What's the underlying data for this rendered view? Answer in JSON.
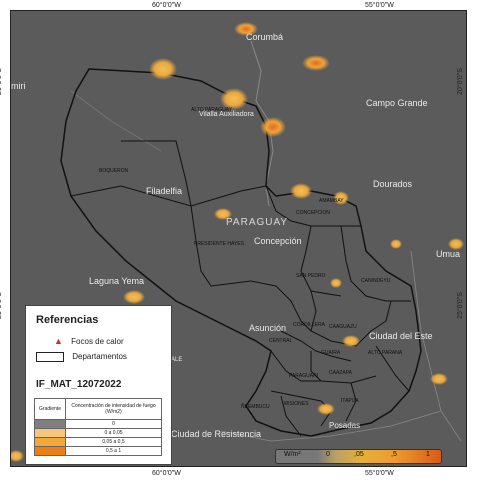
{
  "map": {
    "lon_ticks": [
      "60°0'0\"W",
      "55°0'0\"W"
    ],
    "lat_ticks": [
      "20°0'0\"S",
      "25°0'0\"S"
    ],
    "country_label": "PARAGUAY",
    "cities": {
      "corumba": "Corumbá",
      "miri": "miri",
      "campo_grande": "Campo Grande",
      "bahia_negra": "Vilalla Auxiliadora",
      "dourados": "Dourados",
      "filadelfia": "Filadelfia",
      "concepcion": "Concepción",
      "umua": "Umua",
      "laguna_yema": "Laguna Yema",
      "asuncion": "Asunción",
      "ciudad_este": "Ciudad del Este",
      "resistencia": "Ciudad de Resistencia",
      "posadas": "Posadas",
      "ale": "ALE"
    },
    "departments": {
      "alto_paraguay": "ALTO PARAGUAY",
      "boqueron": "BOQUERON",
      "presidente_hayes": "PRESIDENTE HAYES",
      "concepcion": "CONCEPCION",
      "amambay": "AMAMBAY",
      "san_pedro": "SAN PEDRO",
      "canindeyu": "CANINDEYU",
      "cordillera": "CORDILLERA",
      "caaguazu": "CAAGUAZU",
      "central": "CENTRAL",
      "guaira": "GUAIRA",
      "alto_parana": "ALTO PARANA",
      "paraguari": "PARAGUARI",
      "caazapa": "CAAZAPA",
      "neembucu": "ÑEEMBUCU",
      "misiones": "MISIONES",
      "itapua": "ITAPUA"
    }
  },
  "legend": {
    "title": "Referencias",
    "focos": "Focos de calor",
    "departamentos": "Departamentos",
    "code": "IF_MAT_12072022",
    "table_header_1": "Gradiente",
    "table_header_2": "Concentración de intensidad de fuego (W/m2)",
    "rows": [
      {
        "label": "0",
        "color": "#7f7f7f"
      },
      {
        "label": "0 a 0,05",
        "color": "#f4c77c"
      },
      {
        "label": "0,05 a 0,5",
        "color": "#f2a93c"
      },
      {
        "label": "0,5 a 1",
        "color": "#ef7d16"
      }
    ]
  },
  "scale": {
    "unit": "W/m²",
    "labels": [
      "0",
      ",05",
      ",5",
      "1"
    ]
  },
  "colors": {
    "background": "#5b5b5b",
    "hotspot_low": "#f0b13a",
    "hotspot_high": "#e0601a",
    "boundary": "#111111"
  }
}
